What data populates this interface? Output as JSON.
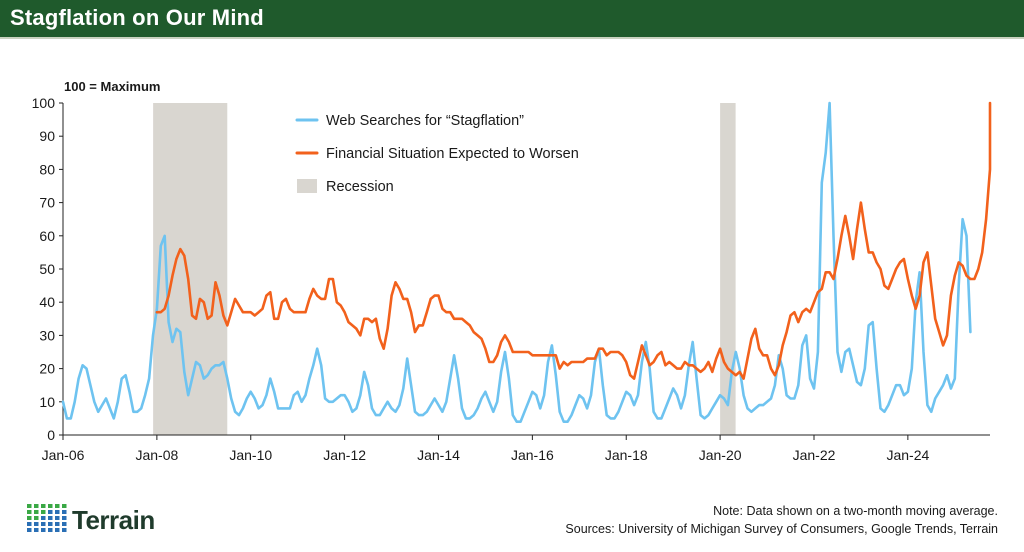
{
  "header": {
    "title": "Stagflation on Our Mind"
  },
  "footer": {
    "brand": "Terrain",
    "note": "Note: Data shown on a two-month moving average.",
    "sources": "Sources: University of Michigan Survey of Consumers, Google Trends, Terrain"
  },
  "colors": {
    "header_bg": "#1f5a2c",
    "searches": "#6ec3f0",
    "worsen": "#f2611c",
    "recession": "#d9d6d0",
    "logo_green": "#3aa845",
    "logo_blue": "#2a6fb5"
  },
  "chart_data": {
    "type": "line",
    "unit_note": "100 = Maximum",
    "ylim": [
      0,
      100
    ],
    "yticks": [
      0,
      10,
      20,
      30,
      40,
      50,
      60,
      70,
      80,
      90,
      100
    ],
    "xlim": [
      2006.0,
      2025.75
    ],
    "xticks": [
      {
        "x": 2006,
        "label": "Jan-06"
      },
      {
        "x": 2008,
        "label": "Jan-08"
      },
      {
        "x": 2010,
        "label": "Jan-10"
      },
      {
        "x": 2012,
        "label": "Jan-12"
      },
      {
        "x": 2014,
        "label": "Jan-14"
      },
      {
        "x": 2016,
        "label": "Jan-16"
      },
      {
        "x": 2018,
        "label": "Jan-18"
      },
      {
        "x": 2020,
        "label": "Jan-20"
      },
      {
        "x": 2022,
        "label": "Jan-22"
      },
      {
        "x": 2024,
        "label": "Jan-24"
      }
    ],
    "recessions": [
      {
        "start": 2007.92,
        "end": 2009.5
      },
      {
        "start": 2020.0,
        "end": 2020.33
      }
    ],
    "legend": [
      {
        "label": "Web Searches for “Stagflation”",
        "kind": "line",
        "color": "#6ec3f0"
      },
      {
        "label": "Financial Situation Expected to Worsen",
        "kind": "line",
        "color": "#f2611c"
      },
      {
        "label": "Recession",
        "kind": "box",
        "color": "#d9d6d0"
      }
    ],
    "series": [
      {
        "name": "Web Searches for “Stagflation”",
        "color": "#6ec3f0",
        "x_start": 2006.0,
        "step": 0.0833333,
        "values": [
          10,
          5,
          5,
          10,
          17,
          21,
          20,
          15,
          10,
          7,
          9,
          11,
          8,
          5,
          10,
          17,
          18,
          13,
          7,
          7,
          8,
          12,
          17,
          30,
          38,
          57,
          60,
          34,
          28,
          32,
          31,
          19,
          12,
          17,
          22,
          21,
          17,
          18,
          20,
          21,
          21,
          22,
          17,
          11,
          7,
          6,
          8,
          11,
          13,
          11,
          8,
          9,
          12,
          17,
          13,
          8,
          8,
          8,
          8,
          12,
          13,
          10,
          12,
          17,
          21,
          26,
          21,
          11,
          10,
          10,
          11,
          12,
          12,
          10,
          7,
          8,
          12,
          19,
          15,
          8,
          6,
          6,
          8,
          10,
          8,
          7,
          9,
          14,
          23,
          15,
          7,
          6,
          6,
          7,
          9,
          11,
          9,
          7,
          10,
          17,
          24,
          17,
          8,
          5,
          5,
          6,
          8,
          11,
          13,
          10,
          7,
          10,
          19,
          25,
          17,
          6,
          4,
          4,
          7,
          10,
          13,
          12,
          8,
          12,
          22,
          27,
          18,
          7,
          4,
          4,
          6,
          9,
          12,
          11,
          8,
          12,
          22,
          26,
          15,
          6,
          5,
          5,
          7,
          10,
          13,
          12,
          9,
          12,
          22,
          28,
          20,
          7,
          5,
          5,
          8,
          11,
          14,
          12,
          8,
          12,
          21,
          28,
          17,
          6,
          5,
          6,
          8,
          10,
          12,
          11,
          9,
          19,
          25,
          20,
          12,
          8,
          7,
          8,
          9,
          9,
          10,
          11,
          15,
          24,
          20,
          12,
          11,
          11,
          15,
          27,
          30,
          17,
          14,
          25,
          76,
          85,
          100,
          60,
          25,
          19,
          25,
          26,
          21,
          16,
          15,
          20,
          33,
          34,
          20,
          8,
          7,
          9,
          12,
          15,
          15,
          12,
          13,
          20,
          40,
          49,
          25,
          9,
          7,
          11,
          13,
          15,
          18,
          14,
          17,
          45,
          65,
          60,
          31
        ]
      },
      {
        "name": "Financial Situation Expected to Worsen",
        "color": "#f2611c",
        "x_start": 2008.0,
        "step": 0.0833333,
        "values": [
          37,
          37,
          38,
          42,
          48,
          53,
          56,
          54,
          47,
          36,
          35,
          41,
          40,
          35,
          36,
          46,
          42,
          36,
          33,
          37,
          41,
          39,
          37,
          37,
          37,
          36,
          37,
          38,
          42,
          43,
          35,
          35,
          40,
          41,
          38,
          37,
          37,
          37,
          37,
          41,
          44,
          42,
          41,
          41,
          47,
          47,
          40,
          39,
          37,
          34,
          33,
          32,
          30,
          35,
          35,
          34,
          35,
          29,
          26,
          32,
          42,
          46,
          44,
          41,
          41,
          37,
          31,
          33,
          33,
          37,
          41,
          42,
          42,
          38,
          37,
          37,
          35,
          35,
          35,
          34,
          33,
          31,
          30,
          29,
          26,
          22,
          22,
          24,
          28,
          30,
          28,
          25,
          25,
          25,
          25,
          25,
          24,
          24,
          24,
          24,
          24,
          24,
          24,
          20,
          22,
          21,
          22,
          22,
          22,
          22,
          23,
          23,
          23,
          26,
          26,
          24,
          25,
          25,
          25,
          24,
          22,
          18,
          17,
          22,
          27,
          24,
          21,
          22,
          24,
          25,
          21,
          22,
          21,
          20,
          20,
          22,
          21,
          21,
          20,
          19,
          20,
          22,
          19,
          23,
          26,
          22,
          20,
          19,
          18,
          19,
          17,
          23,
          29,
          32,
          26,
          24,
          24,
          20,
          18,
          21,
          27,
          31,
          36,
          37,
          34,
          37,
          38,
          37,
          40,
          43,
          44,
          49,
          49,
          47,
          53,
          60,
          66,
          60,
          53,
          62,
          70,
          62,
          55,
          55,
          52,
          50,
          45,
          44,
          47,
          50,
          52,
          53,
          47,
          42,
          38,
          42,
          52,
          55,
          45,
          35,
          31,
          27,
          30,
          42,
          48,
          52,
          51,
          48,
          47,
          47,
          50,
          55,
          65,
          80,
          96,
          100
        ]
      }
    ]
  }
}
